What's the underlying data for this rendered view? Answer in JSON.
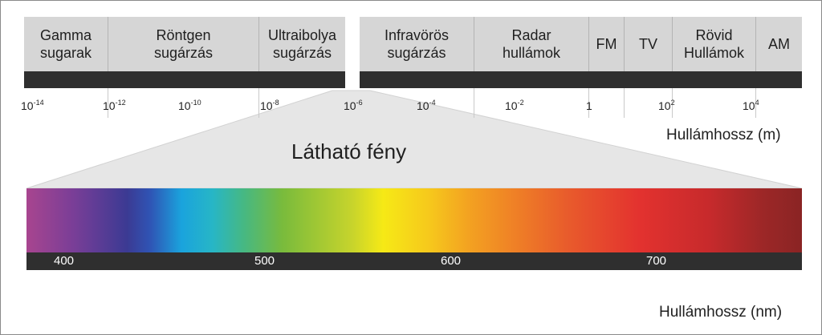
{
  "bands": {
    "left": [
      {
        "label": "Gamma\nsugarak"
      },
      {
        "label": "Röntgen\nsugárzás"
      },
      {
        "label": "Ultraibolya\nsugárzás"
      }
    ],
    "right": [
      {
        "label": "Infravörös\nsugárzás"
      },
      {
        "label": "Radar\nhullámok"
      },
      {
        "label": "FM"
      },
      {
        "label": "TV"
      },
      {
        "label": "Rövid\nHullámok"
      },
      {
        "label": "AM"
      }
    ]
  },
  "wavelength_ticks": [
    {
      "base": "10",
      "exp": "-14"
    },
    {
      "base": "10",
      "exp": "-12"
    },
    {
      "base": "10",
      "exp": "-10"
    },
    {
      "base": "10",
      "exp": "-8"
    },
    {
      "base": "10",
      "exp": "-6"
    },
    {
      "base": "10",
      "exp": "-4"
    },
    {
      "base": "10",
      "exp": "-2"
    },
    {
      "base": "1",
      "exp": ""
    },
    {
      "base": "10",
      "exp": "2"
    },
    {
      "base": "10",
      "exp": "4"
    }
  ],
  "axis_m_label": "Hullámhossz (m)",
  "visible_title": "Látható fény",
  "nm_ticks": [
    "400",
    "500",
    "600",
    "700"
  ],
  "axis_nm_label": "Hullámhossz (nm)",
  "colors": {
    "cell_bg": "#d6d6d6",
    "bar": "#2f2f2f",
    "cone": "#e6e6e6"
  }
}
